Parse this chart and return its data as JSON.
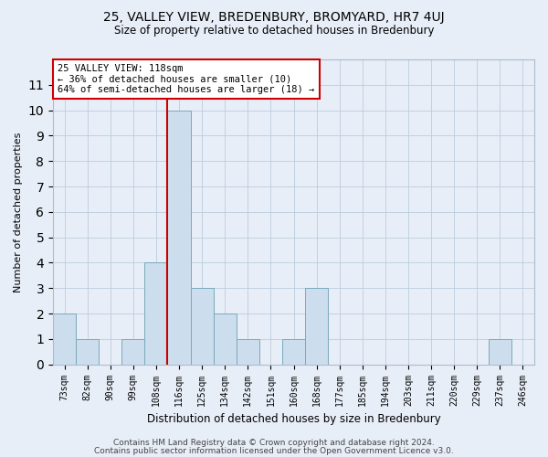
{
  "title": "25, VALLEY VIEW, BREDENBURY, BROMYARD, HR7 4UJ",
  "subtitle": "Size of property relative to detached houses in Bredenbury",
  "xlabel": "Distribution of detached houses by size in Bredenbury",
  "ylabel": "Number of detached properties",
  "categories": [
    "73sqm",
    "82sqm",
    "90sqm",
    "99sqm",
    "108sqm",
    "116sqm",
    "125sqm",
    "134sqm",
    "142sqm",
    "151sqm",
    "160sqm",
    "168sqm",
    "177sqm",
    "185sqm",
    "194sqm",
    "203sqm",
    "211sqm",
    "220sqm",
    "229sqm",
    "237sqm",
    "246sqm"
  ],
  "values": [
    2,
    1,
    0,
    1,
    4,
    10,
    3,
    2,
    1,
    0,
    1,
    3,
    0,
    0,
    0,
    0,
    0,
    0,
    0,
    1,
    0
  ],
  "bar_color": "#ccdded",
  "bar_edge_color": "#7aaabb",
  "highlight_index": 5,
  "highlight_line_color": "#cc0000",
  "annotation_text": "25 VALLEY VIEW: 118sqm\n← 36% of detached houses are smaller (10)\n64% of semi-detached houses are larger (18) →",
  "annotation_box_facecolor": "#ffffff",
  "annotation_box_edgecolor": "#cc0000",
  "ylim": [
    0,
    12
  ],
  "yticks": [
    0,
    1,
    2,
    3,
    4,
    5,
    6,
    7,
    8,
    9,
    10,
    11
  ],
  "grid_color": "#bbccdd",
  "bg_color": "#e8eef8",
  "footer_line1": "Contains HM Land Registry data © Crown copyright and database right 2024.",
  "footer_line2": "Contains public sector information licensed under the Open Government Licence v3.0.",
  "title_fontsize": 10,
  "subtitle_fontsize": 8.5,
  "ylabel_fontsize": 8,
  "xlabel_fontsize": 8.5,
  "tick_fontsize": 7,
  "annotation_fontsize": 7.5,
  "footer_fontsize": 6.5
}
